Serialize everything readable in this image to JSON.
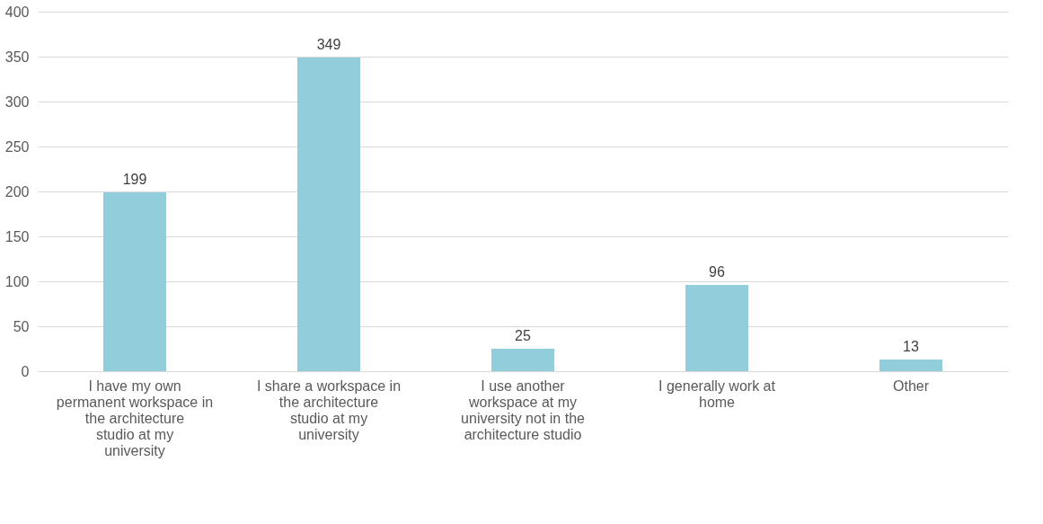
{
  "chart_data": {
    "type": "bar",
    "categories": [
      "I have my own permanent workspace in the architecture studio at my university",
      "I share a workspace in the architecture studio at my university",
      "I use another workspace at my university not in the architecture studio",
      "I generally work at home",
      "Other"
    ],
    "values": [
      199,
      349,
      25,
      96,
      13
    ],
    "color": "#92cddc",
    "ylim": [
      0,
      400
    ],
    "yticks": [
      0,
      50,
      100,
      150,
      200,
      250,
      300,
      350,
      400
    ],
    "grid": "y",
    "data_labels": true
  }
}
